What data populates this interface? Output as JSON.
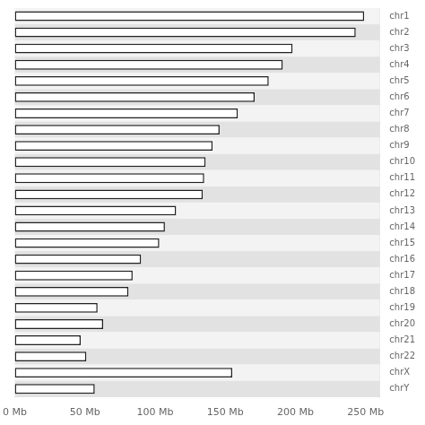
{
  "chart_data": {
    "type": "bar",
    "orientation": "horizontal",
    "categories": [
      "chr1",
      "chr2",
      "chr3",
      "chr4",
      "chr5",
      "chr6",
      "chr7",
      "chr8",
      "chr9",
      "chr10",
      "chr11",
      "chr12",
      "chr13",
      "chr14",
      "chr15",
      "chr16",
      "chr17",
      "chr18",
      "chr19",
      "chr20",
      "chr21",
      "chr22",
      "chrX",
      "chrY"
    ],
    "values": [
      249,
      243,
      198,
      191,
      181,
      171,
      159,
      146,
      141,
      136,
      135,
      134,
      115,
      107,
      103,
      90,
      84,
      81,
      59,
      63,
      47,
      51,
      155,
      57
    ],
    "color": "white",
    "xlim": [
      0,
      260
    ],
    "xticks": [
      {
        "value": 0,
        "label": "0 Mb"
      },
      {
        "value": 50,
        "label": "50 Mb"
      },
      {
        "value": 100,
        "label": "100 Mb"
      },
      {
        "value": 150,
        "label": "150 Mb"
      },
      {
        "value": 200,
        "label": "200 Mb"
      },
      {
        "value": 250,
        "label": "250 Mb"
      }
    ],
    "grid": false
  }
}
